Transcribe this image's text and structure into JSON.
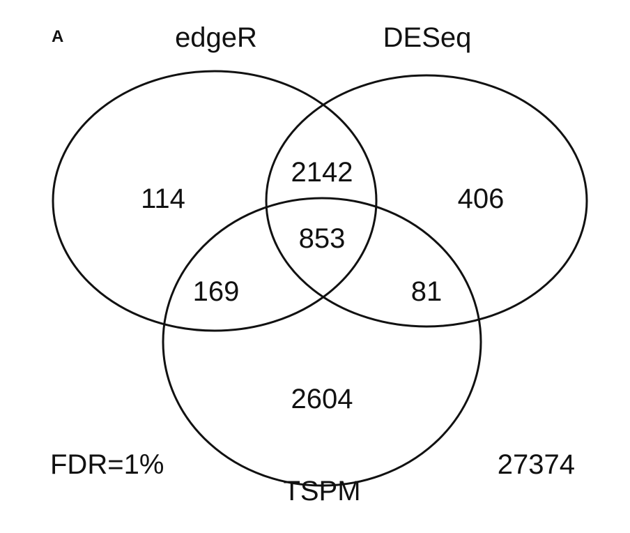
{
  "panel_label": "A",
  "sets": {
    "edger": "edgeR",
    "deseq": "DESeq",
    "tspm": "TSPM"
  },
  "regions": {
    "edger_only": "114",
    "deseq_only": "406",
    "tspm_only": "2604",
    "edger_deseq": "2142",
    "edger_tspm": "169",
    "deseq_tspm": "81",
    "all_three": "853"
  },
  "footer": {
    "threshold": "FDR=1%",
    "outside_count": "27374"
  },
  "colors": {
    "stroke": "#111111",
    "background": "#ffffff"
  }
}
